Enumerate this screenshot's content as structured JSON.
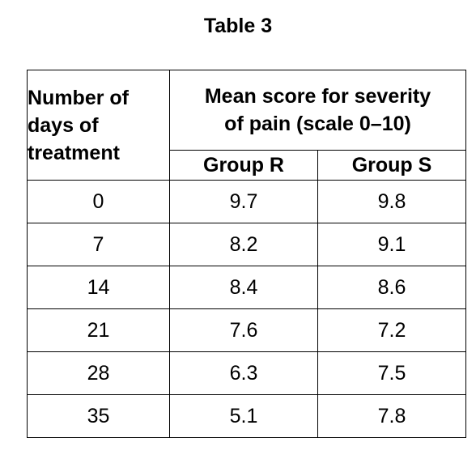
{
  "title": "Table 3",
  "table": {
    "row_header_lines": [
      "Number of",
      "days of",
      "treatment"
    ],
    "group_header_lines": [
      "Mean score for severity",
      "of pain (scale 0–10)"
    ],
    "columns": [
      "Group R",
      "Group S"
    ],
    "rows": [
      {
        "days": "0",
        "group_r": "9.7",
        "group_s": "9.8"
      },
      {
        "days": "7",
        "group_r": "8.2",
        "group_s": "9.1"
      },
      {
        "days": "14",
        "group_r": "8.4",
        "group_s": "8.6"
      },
      {
        "days": "21",
        "group_r": "7.6",
        "group_s": "7.2"
      },
      {
        "days": "28",
        "group_r": "6.3",
        "group_s": "7.5"
      },
      {
        "days": "35",
        "group_r": "5.1",
        "group_s": "7.8"
      }
    ]
  },
  "chart_data": {
    "type": "table",
    "title": "Table 3",
    "columns": [
      "Number of days of treatment",
      "Group R",
      "Group S"
    ],
    "rows": [
      [
        0,
        9.7,
        9.8
      ],
      [
        7,
        8.2,
        9.1
      ],
      [
        14,
        8.4,
        8.6
      ],
      [
        21,
        7.6,
        7.2
      ],
      [
        28,
        6.3,
        7.5
      ],
      [
        35,
        5.1,
        7.8
      ]
    ]
  }
}
